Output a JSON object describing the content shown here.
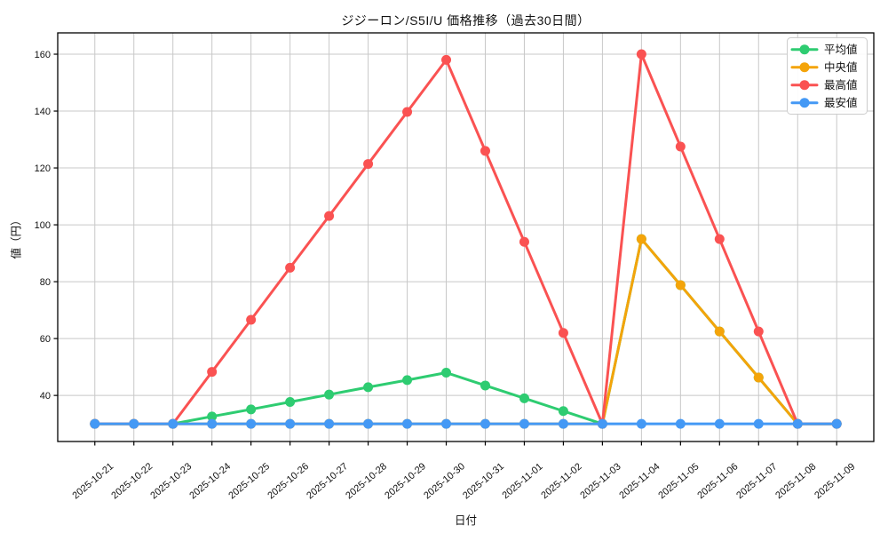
{
  "chart_data": {
    "type": "line",
    "title": "ジジーロン/S5I/U 価格推移（過去30日間）",
    "xlabel": "日付",
    "ylabel": "値（円）",
    "x": [
      "2025-10-21",
      "2025-10-22",
      "2025-10-23",
      "2025-10-24",
      "2025-10-25",
      "2025-10-26",
      "2025-10-27",
      "2025-10-28",
      "2025-10-29",
      "2025-10-30",
      "2025-10-31",
      "2025-11-01",
      "2025-11-02",
      "2025-11-03",
      "2025-11-04",
      "2025-11-05",
      "2025-11-06",
      "2025-11-07",
      "2025-11-08",
      "2025-11-09"
    ],
    "series": [
      {
        "name": "平均値",
        "color": "#2ecc71",
        "values": [
          30,
          30,
          30,
          32.6,
          35.1,
          37.7,
          40.3,
          42.9,
          45.4,
          48,
          43.5,
          39,
          34.5,
          30,
          95,
          78.8,
          62.5,
          46.3,
          30,
          30
        ]
      },
      {
        "name": "中央値",
        "color": "#f4a40a",
        "values": [
          30,
          30,
          30,
          30,
          30,
          30,
          30,
          30,
          30,
          30,
          30,
          30,
          30,
          30,
          95,
          78.8,
          62.5,
          46.3,
          30,
          30
        ]
      },
      {
        "name": "最高値",
        "color": "#fa5252",
        "values": [
          30,
          30,
          30,
          48.3,
          66.6,
          84.9,
          103.1,
          121.4,
          139.7,
          158,
          126,
          94,
          62,
          30,
          160,
          127.5,
          95,
          62.5,
          30,
          30
        ]
      },
      {
        "name": "最安値",
        "color": "#4499f5",
        "values": [
          30,
          30,
          30,
          30,
          30,
          30,
          30,
          30,
          30,
          30,
          30,
          30,
          30,
          30,
          30,
          30,
          30,
          30,
          30,
          30
        ]
      }
    ],
    "yticks": [
      40,
      60,
      80,
      100,
      120,
      140,
      160
    ],
    "ylim": [
      23.8,
      167.5
    ],
    "grid": true,
    "legend_position": "upper right"
  }
}
